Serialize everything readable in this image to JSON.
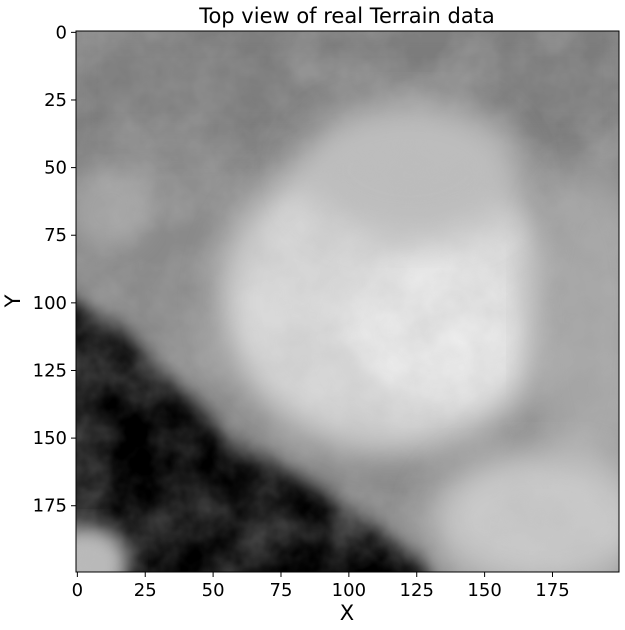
{
  "chart_data": {
    "type": "heatmap",
    "title": "Top view of real Terrain data",
    "xlabel": "X",
    "ylabel": "Y",
    "colormap": "gray",
    "xlim": [
      0,
      199
    ],
    "ylim": [
      199,
      0
    ],
    "x_ticks": [
      0,
      25,
      50,
      75,
      100,
      125,
      150,
      175
    ],
    "y_ticks": [
      0,
      25,
      50,
      75,
      100,
      125,
      150,
      175
    ],
    "x_tick_labels": [
      "0",
      "25",
      "50",
      "75",
      "100",
      "125",
      "150",
      "175"
    ],
    "y_tick_labels": [
      "0",
      "25",
      "50",
      "75",
      "100",
      "125",
      "150",
      "175"
    ],
    "grid_shape": [
      200,
      200
    ],
    "grid": false,
    "intensity_regions": [
      {
        "region": "top band (y 0-60)",
        "level": "medium gray"
      },
      {
        "region": "center-right (x 80-160, y 60-140)",
        "level": "bright / near white"
      },
      {
        "region": "lower-left diagonal band (x 0-125, y 100-199)",
        "level": "black"
      },
      {
        "region": "bottom-left corner (x 0-20, y 175-199)",
        "level": "light gray"
      },
      {
        "region": "bottom-right (x 140-199, y 150-199)",
        "level": "light gray"
      }
    ]
  },
  "colors": {
    "background": "#ffffff",
    "axis": "#000000"
  }
}
